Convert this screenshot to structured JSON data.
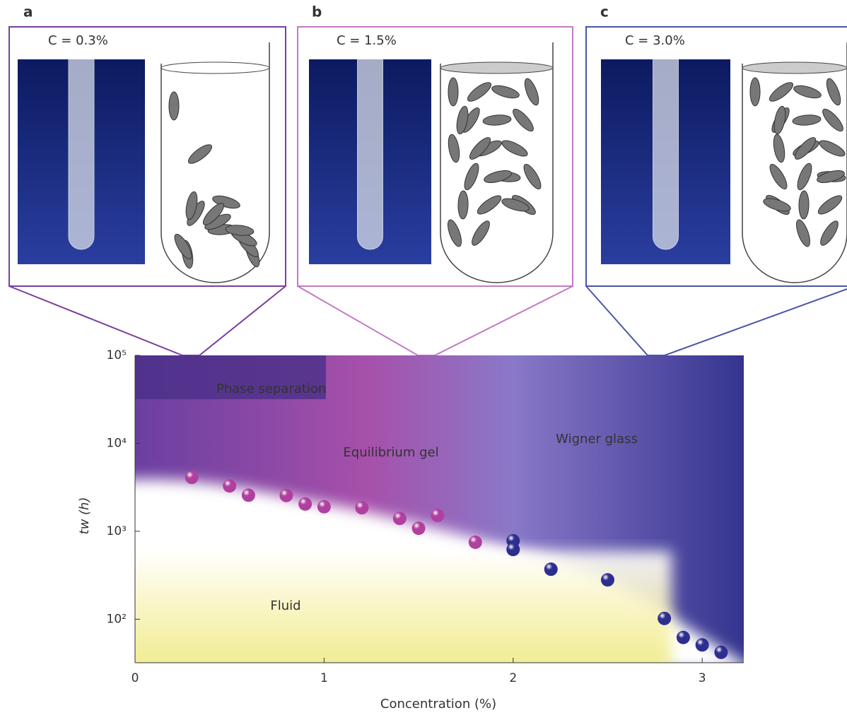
{
  "panels": [
    {
      "letter": "a",
      "concentration": "C = 0.3%",
      "color": "#7a3f9c"
    },
    {
      "letter": "b",
      "concentration": "C = 1.5%",
      "color": "#c27ac4"
    },
    {
      "letter": "c",
      "concentration": "C = 3.0%",
      "color": "#4a55a8"
    }
  ],
  "chart_data": {
    "type": "scatter",
    "x_label": "Concentration (%)",
    "y_label": "tw (h)",
    "regions": [
      "Phase separation",
      "Equilibrium gel",
      "Wigner glass",
      "Fluid"
    ],
    "xlim": [
      0,
      3.22
    ],
    "xticks": [
      0,
      1,
      2,
      3
    ],
    "ylim": [
      32,
      100000
    ],
    "y_scale": "log",
    "yticks": [
      {
        "value": 100,
        "label": "10²"
      },
      {
        "value": 1000,
        "label": "10³"
      },
      {
        "value": 10000,
        "label": "10⁴"
      },
      {
        "value": 100000,
        "label": "10⁵"
      }
    ],
    "series": [
      {
        "color": "#b0409f",
        "x": [
          0.3,
          0.5,
          0.6,
          0.8,
          0.9,
          1.0,
          1.2,
          1.4,
          1.5,
          1.6,
          1.8
        ],
        "values": [
          4100,
          3280,
          2570,
          2550,
          2040,
          1900,
          1850,
          1400,
          1080,
          1510,
          750
        ]
      },
      {
        "color": "#2e2e90",
        "x": [
          2.0,
          2.0,
          2.2,
          2.5,
          2.8,
          2.9,
          3.0,
          3.1
        ],
        "values": [
          780,
          620,
          370,
          280,
          102,
          62,
          51,
          42
        ]
      }
    ]
  }
}
